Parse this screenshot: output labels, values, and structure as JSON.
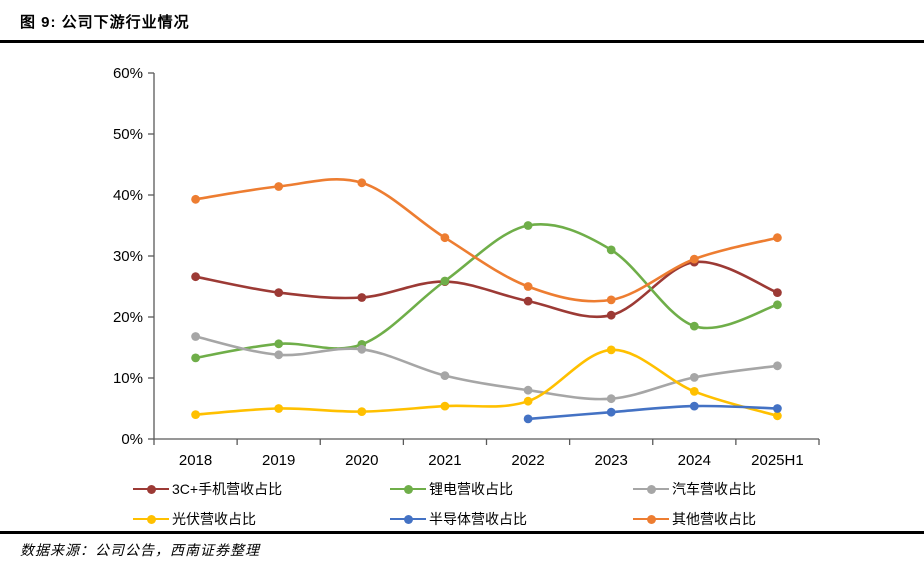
{
  "figure": {
    "title": "图 9: 公司下游行业情况",
    "source": "数据来源：公司公告，西南证券整理"
  },
  "chart_data": {
    "type": "line",
    "smooth": true,
    "grid": false,
    "legend_position": "bottom",
    "categories": [
      "2018",
      "2019",
      "2020",
      "2021",
      "2022",
      "2023",
      "2024",
      "2025H1"
    ],
    "series": [
      {
        "name": "3C+手机营收占比",
        "color": "#9C3A35",
        "values": [
          26.6,
          24.0,
          23.2,
          25.8,
          22.6,
          20.3,
          29.0,
          24.0
        ]
      },
      {
        "name": "锂电营收占比",
        "color": "#6FAE49",
        "values": [
          13.3,
          15.6,
          15.5,
          25.9,
          35.0,
          31.0,
          18.5,
          22.0
        ]
      },
      {
        "name": "汽车营收占比",
        "color": "#A6A6A6",
        "values": [
          16.8,
          13.8,
          14.7,
          10.4,
          8.0,
          6.6,
          10.1,
          12.0
        ]
      },
      {
        "name": "光伏营收占比",
        "color": "#FFC000",
        "values": [
          4.0,
          5.0,
          4.5,
          5.4,
          6.2,
          14.6,
          7.8,
          3.8
        ]
      },
      {
        "name": "半导体营收占比",
        "color": "#4472C4",
        "values": [
          null,
          null,
          null,
          null,
          3.3,
          4.4,
          5.4,
          5.0
        ]
      },
      {
        "name": "其他营收占比",
        "color": "#ED7D31",
        "values": [
          39.3,
          41.4,
          42.0,
          33.0,
          25.0,
          22.8,
          29.5,
          33.0
        ]
      }
    ],
    "ylim": [
      0,
      60
    ],
    "ytick_step": 10,
    "ytick_labels": [
      "0%",
      "10%",
      "20%",
      "30%",
      "40%",
      "50%",
      "60%"
    ],
    "xlabel": "",
    "ylabel": "",
    "axis_color": "#595959"
  }
}
